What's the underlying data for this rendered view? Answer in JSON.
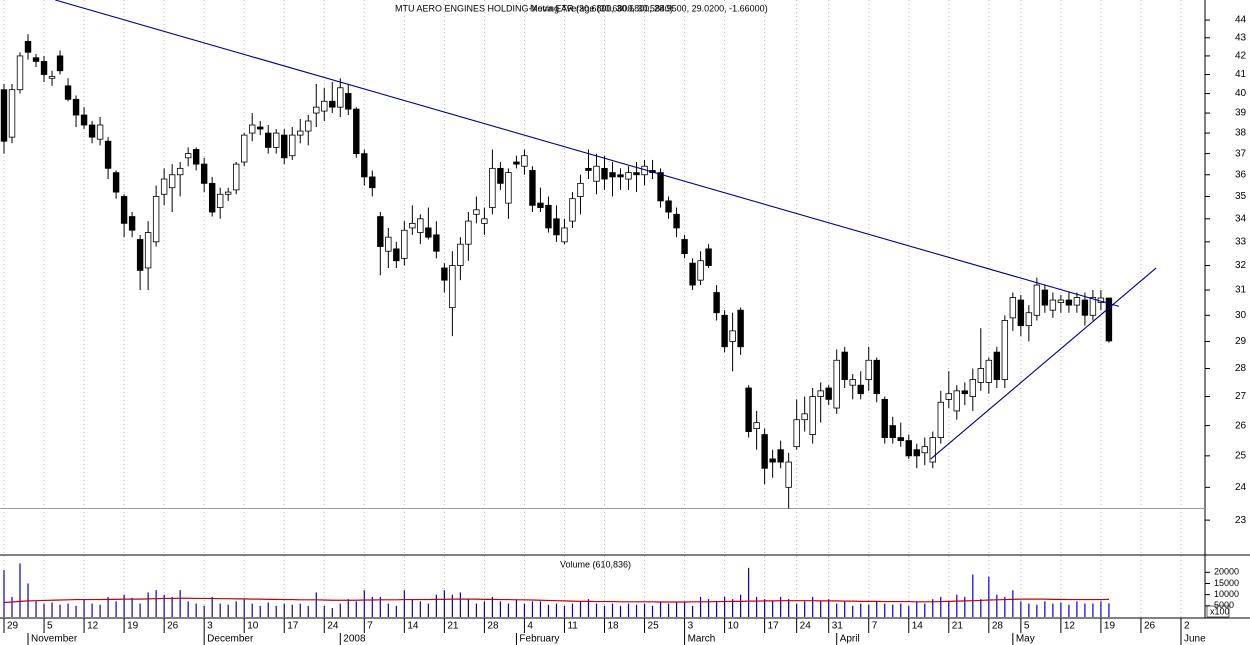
{
  "chart_data": {
    "type": "candlestick",
    "title": "MTU AERO ENGINES HOLDING-Xetra ETR (30.6800, 30.6800, 28.9500, 29.0200, -1.66000)",
    "subtitle": "Moving Average (30.6800, 30.5840)",
    "log_scale": true,
    "grid": true,
    "xlim": [
      -0.5,
      150
    ],
    "xticks": [
      {
        "value": 0,
        "label": "29"
      },
      {
        "value": 5,
        "label": "5"
      },
      {
        "value": 10,
        "label": "12"
      },
      {
        "value": 15,
        "label": "19"
      },
      {
        "value": 20,
        "label": "26"
      },
      {
        "value": 25,
        "label": "3"
      },
      {
        "value": 30,
        "label": "10"
      },
      {
        "value": 35,
        "label": "17"
      },
      {
        "value": 40,
        "label": "24"
      },
      {
        "value": 45,
        "label": "7"
      },
      {
        "value": 50,
        "label": "14"
      },
      {
        "value": 55,
        "label": "21"
      },
      {
        "value": 60,
        "label": "28"
      },
      {
        "value": 65,
        "label": "4"
      },
      {
        "value": 70,
        "label": "11"
      },
      {
        "value": 75,
        "label": "18"
      },
      {
        "value": 80,
        "label": "25"
      },
      {
        "value": 85,
        "label": "3"
      },
      {
        "value": 90,
        "label": "10"
      },
      {
        "value": 95,
        "label": "17"
      },
      {
        "value": 99,
        "label": "24"
      },
      {
        "value": 103,
        "label": "31"
      },
      {
        "value": 108,
        "label": "7"
      },
      {
        "value": 113,
        "label": "14"
      },
      {
        "value": 118,
        "label": "21"
      },
      {
        "value": 123,
        "label": "28"
      },
      {
        "value": 127,
        "label": "5"
      },
      {
        "value": 132,
        "label": "12"
      },
      {
        "value": 137,
        "label": "19"
      },
      {
        "value": 142,
        "label": "26"
      },
      {
        "value": 147,
        "label": "2"
      }
    ],
    "month_labels": [
      {
        "value": 3,
        "label": "November"
      },
      {
        "value": 25,
        "label": "December"
      },
      {
        "value": 42,
        "label": "2008"
      },
      {
        "value": 64,
        "label": "February"
      },
      {
        "value": 85,
        "label": "March"
      },
      {
        "value": 104,
        "label": "April"
      },
      {
        "value": 126,
        "label": "May"
      },
      {
        "value": 147,
        "label": "June"
      }
    ],
    "ylim": [
      22.04,
      45.16
    ],
    "yticks": [
      23,
      24,
      25,
      26,
      27,
      28,
      29,
      30,
      31,
      32,
      33,
      34,
      35,
      36,
      37,
      38,
      39,
      40,
      41,
      42,
      43,
      44
    ],
    "up_color": "#ffffff",
    "down_color": "#000000",
    "open": [
      40.2,
      37.8,
      40.2,
      42.8,
      41.9,
      41.7,
      40.8,
      42.0,
      40.4,
      39.7,
      38.9,
      38.4,
      37.7,
      37.6,
      36.1,
      35.0,
      34.1,
      33.1,
      31.9,
      33.0,
      35.1,
      35.4,
      36.0,
      36.8,
      37.2,
      36.5,
      35.6,
      34.5,
      35.1,
      35.3,
      36.6,
      38.0,
      38.3,
      38.0,
      37.3,
      37.9,
      36.9,
      37.9,
      38.1,
      39.0,
      39.1,
      39.6,
      39.3,
      40.0,
      39.2,
      37.0,
      35.9,
      34.1,
      32.6,
      32.7,
      32.3,
      33.6,
      33.4,
      33.6,
      33.3,
      31.9,
      30.3,
      32.0,
      32.9,
      34.2,
      33.8,
      34.5,
      36.3,
      34.7,
      36.6,
      36.4,
      36.2,
      34.7,
      34.6,
      34.0,
      33.0,
      33.9,
      35.0,
      36.3,
      35.7,
      36.3,
      36.1,
      36.0,
      35.8,
      36.1,
      36.0,
      36.2,
      36.1,
      34.8,
      34.2,
      33.1,
      32.1,
      31.4,
      32.7,
      30.9,
      30.0,
      29.0,
      30.2,
      27.3,
      25.9,
      25.7,
      24.9,
      25.2,
      24.0,
      25.3,
      26.2,
      25.7,
      27.0,
      27.3,
      26.6,
      28.6,
      27.4,
      27.4,
      27.6,
      28.3,
      26.9,
      26.0,
      25.6,
      25.5,
      25.2,
      25.1,
      24.8,
      25.6,
      26.9,
      26.5,
      27.2,
      27.0,
      27.5,
      27.5,
      28.6,
      27.6,
      29.9,
      30.6,
      29.6,
      30.0,
      31.0,
      30.2,
      30.5,
      30.6,
      30.4,
      30.6,
      30.0,
      30.5,
      30.68
    ],
    "high": [
      40.5,
      40.5,
      42.2,
      43.2,
      42.1,
      42.0,
      41.2,
      42.3,
      40.8,
      39.9,
      39.3,
      38.6,
      38.8,
      37.8,
      36.2,
      35.1,
      34.3,
      33.3,
      33.9,
      35.5,
      36.3,
      36.5,
      36.6,
      37.3,
      37.3,
      36.8,
      35.9,
      35.4,
      35.4,
      36.6,
      38.0,
      39.0,
      38.6,
      38.4,
      38.2,
      38.2,
      38.3,
      38.7,
      38.9,
      40.5,
      40.3,
      40.6,
      40.8,
      40.5,
      39.3,
      37.2,
      36.2,
      34.3,
      33.6,
      33.0,
      33.9,
      34.6,
      34.2,
      34.5,
      33.9,
      32.1,
      32.6,
      33.2,
      34.3,
      35.0,
      34.5,
      37.2,
      36.6,
      36.3,
      36.9,
      37.2,
      36.4,
      35.4,
      35.0,
      34.6,
      34.0,
      35.2,
      36.0,
      37.2,
      37.0,
      36.9,
      36.6,
      36.3,
      36.4,
      36.6,
      36.7,
      36.7,
      36.3,
      35.0,
      34.5,
      33.3,
      32.3,
      32.6,
      32.9,
      31.2,
      30.2,
      30.1,
      30.3,
      27.4,
      26.5,
      25.9,
      25.2,
      25.5,
      25.1,
      26.9,
      27.0,
      27.3,
      27.5,
      27.4,
      28.7,
      28.8,
      27.8,
      27.9,
      28.8,
      28.4,
      27.0,
      26.3,
      26.1,
      25.7,
      25.4,
      25.6,
      25.8,
      27.2,
      27.9,
      27.4,
      27.5,
      28.0,
      29.5,
      28.4,
      28.8,
      30.0,
      30.9,
      30.8,
      30.4,
      31.5,
      31.2,
      30.9,
      30.8,
      30.9,
      30.9,
      30.9,
      31.0,
      31.0,
      30.68
    ],
    "low": [
      37.0,
      37.5,
      40.0,
      41.8,
      41.4,
      40.6,
      40.4,
      41.0,
      39.6,
      38.3,
      38.2,
      37.5,
      37.4,
      35.8,
      34.9,
      33.2,
      33.2,
      31.0,
      31.0,
      32.8,
      34.6,
      34.3,
      35.0,
      36.4,
      36.2,
      35.2,
      34.1,
      34.0,
      34.8,
      35.1,
      36.4,
      37.6,
      37.9,
      37.0,
      37.0,
      36.5,
      36.7,
      37.5,
      37.4,
      38.3,
      38.6,
      39.0,
      38.8,
      38.9,
      36.8,
      35.5,
      35.0,
      31.6,
      31.9,
      31.9,
      32.0,
      33.3,
      32.9,
      33.1,
      32.3,
      30.9,
      29.2,
      31.4,
      32.2,
      33.8,
      33.3,
      34.2,
      35.3,
      34.0,
      36.3,
      36.0,
      34.3,
      34.3,
      33.4,
      33.0,
      32.9,
      33.6,
      34.2,
      35.8,
      35.1,
      35.3,
      35.0,
      35.3,
      35.3,
      35.2,
      35.5,
      35.8,
      34.5,
      34.0,
      33.2,
      32.3,
      31.0,
      31.2,
      31.9,
      29.8,
      28.6,
      27.9,
      28.5,
      25.6,
      25.2,
      24.1,
      24.3,
      24.6,
      23.35,
      25.2,
      25.8,
      25.4,
      26.1,
      26.7,
      26.4,
      27.3,
      26.9,
      26.9,
      27.2,
      26.8,
      25.4,
      25.4,
      25.3,
      24.9,
      24.6,
      24.7,
      24.6,
      25.4,
      26.6,
      26.2,
      26.7,
      26.5,
      27.2,
      27.1,
      27.3,
      27.3,
      29.4,
      29.2,
      29.0,
      29.8,
      30.1,
      29.9,
      30.1,
      30.1,
      30.1,
      29.6,
      29.8,
      30.2,
      28.95
    ],
    "close": [
      37.6,
      40.2,
      42.0,
      42.2,
      41.7,
      41.0,
      40.9,
      41.2,
      39.7,
      38.9,
      38.4,
      37.8,
      38.4,
      36.3,
      35.2,
      33.8,
      33.5,
      31.8,
      33.4,
      35.0,
      35.8,
      36.0,
      36.3,
      37.0,
      36.5,
      35.6,
      34.3,
      35.1,
      35.2,
      36.5,
      37.9,
      38.4,
      38.2,
      37.3,
      38.0,
      36.8,
      37.9,
      38.1,
      38.6,
      39.3,
      39.6,
      39.3,
      40.3,
      39.2,
      37.0,
      35.9,
      35.4,
      32.8,
      33.2,
      32.2,
      33.5,
      33.8,
      34.0,
      33.2,
      32.6,
      31.4,
      32.0,
      32.9,
      33.9,
      34.4,
      34.0,
      36.3,
      35.6,
      36.1,
      36.5,
      36.9,
      34.6,
      34.5,
      33.6,
      33.3,
      33.6,
      34.9,
      35.6,
      36.2,
      36.4,
      35.8,
      35.9,
      35.9,
      36.1,
      36.0,
      36.4,
      36.1,
      34.8,
      34.3,
      33.6,
      32.5,
      31.2,
      32.2,
      32.0,
      30.1,
      28.8,
      29.4,
      28.8,
      25.8,
      26.1,
      24.6,
      24.8,
      24.8,
      24.8,
      26.2,
      26.4,
      27.0,
      27.2,
      26.9,
      28.3,
      27.6,
      27.6,
      27.1,
      28.3,
      27.1,
      25.6,
      25.6,
      25.5,
      25.0,
      25.0,
      25.3,
      25.6,
      26.8,
      27.1,
      27.2,
      27.1,
      27.6,
      28.0,
      28.3,
      27.6,
      29.8,
      30.7,
      29.6,
      30.1,
      31.2,
      30.4,
      30.6,
      30.6,
      30.4,
      30.7,
      30.0,
      30.7,
      30.68,
      29.02
    ],
    "trendlines": [
      {
        "color": "#00008b",
        "x": [
          6.4,
          139.25
        ],
        "y": [
          45.16,
          30.35
        ]
      },
      {
        "color": "#00008b",
        "x": [
          115.75,
          143.9
        ],
        "y": [
          24.9,
          31.9
        ]
      }
    ],
    "hline": 23.35,
    "volume": {
      "title": "Volume (610,836)",
      "unit_label": "x100",
      "color": "#0000cc",
      "ylim": [
        0,
        26400
      ],
      "yticks": [
        5000,
        10000,
        15000,
        20000
      ],
      "values": [
        21000,
        9000,
        24000,
        15000,
        7000,
        6000,
        6500,
        5500,
        6000,
        5000,
        8000,
        6000,
        5500,
        9000,
        7000,
        10000,
        8500,
        6000,
        11000,
        12000,
        10000,
        9000,
        12000,
        7000,
        6000,
        5000,
        9000,
        6000,
        5500,
        7000,
        8000,
        6000,
        5000,
        6500,
        5000,
        6000,
        5500,
        6000,
        5000,
        11000,
        5000,
        4000,
        6000,
        8000,
        7000,
        12000,
        9000,
        9000,
        6000,
        5000,
        12000,
        8000,
        7000,
        6000,
        10000,
        12000,
        10000,
        11000,
        8000,
        6000,
        7000,
        9000,
        7000,
        6000,
        8000,
        6000,
        7000,
        7000,
        5500,
        6000,
        5000,
        6000,
        7000,
        8000,
        6000,
        5000,
        6000,
        5000,
        6000,
        5500,
        6000,
        5000,
        7000,
        6000,
        6500,
        7000,
        5000,
        9000,
        8000,
        7000,
        9000,
        8000,
        10000,
        22000,
        9000,
        8000,
        7000,
        9000,
        8000,
        6000,
        7000,
        9000,
        7000,
        8000,
        6000,
        7000,
        5000,
        6000,
        5500,
        7000,
        6000,
        5500,
        6000,
        5000,
        7000,
        6000,
        8000,
        9000,
        7000,
        10000,
        9000,
        19000,
        8000,
        18000,
        10000,
        9000,
        12000,
        7000,
        6000,
        5500,
        7000,
        6000,
        6500,
        5500,
        7000,
        6000,
        6000,
        7000,
        6108
      ],
      "ma": {
        "color": "#cc0000",
        "values": [
          6500,
          6700,
          7000,
          7200,
          7300,
          7400,
          7500,
          7600,
          7700,
          7800,
          7800,
          7800,
          7800,
          7900,
          7900,
          8000,
          8000,
          8000,
          8100,
          8200,
          8300,
          8300,
          8400,
          8400,
          8300,
          8300,
          8300,
          8200,
          8200,
          8100,
          8100,
          8000,
          8000,
          7900,
          7900,
          7800,
          7800,
          7700,
          7700,
          7700,
          7600,
          7500,
          7500,
          7500,
          7500,
          7600,
          7600,
          7700,
          7700,
          7700,
          7800,
          7800,
          7800,
          7800,
          7900,
          7900,
          8000,
          8000,
          8000,
          8000,
          7900,
          7900,
          7800,
          7800,
          7700,
          7700,
          7600,
          7500,
          7400,
          7300,
          7200,
          7100,
          7000,
          7000,
          6900,
          6900,
          6900,
          6800,
          6800,
          6800,
          6800,
          6800,
          6700,
          6700,
          6700,
          6700,
          6800,
          6800,
          6800,
          6900,
          6900,
          7000,
          7000,
          7100,
          7100,
          7200,
          7200,
          7300,
          7300,
          7300,
          7300,
          7300,
          7200,
          7200,
          7200,
          7100,
          7100,
          7000,
          7000,
          7000,
          6900,
          6900,
          6900,
          6900,
          6800,
          6800,
          6800,
          6900,
          7000,
          7100,
          7200,
          7300,
          7400,
          7600,
          7700,
          7800,
          7900,
          8000,
          8000,
          8000,
          8000,
          7900,
          7900,
          7800,
          7800,
          7800,
          7800,
          7800,
          7900
        ]
      }
    }
  }
}
